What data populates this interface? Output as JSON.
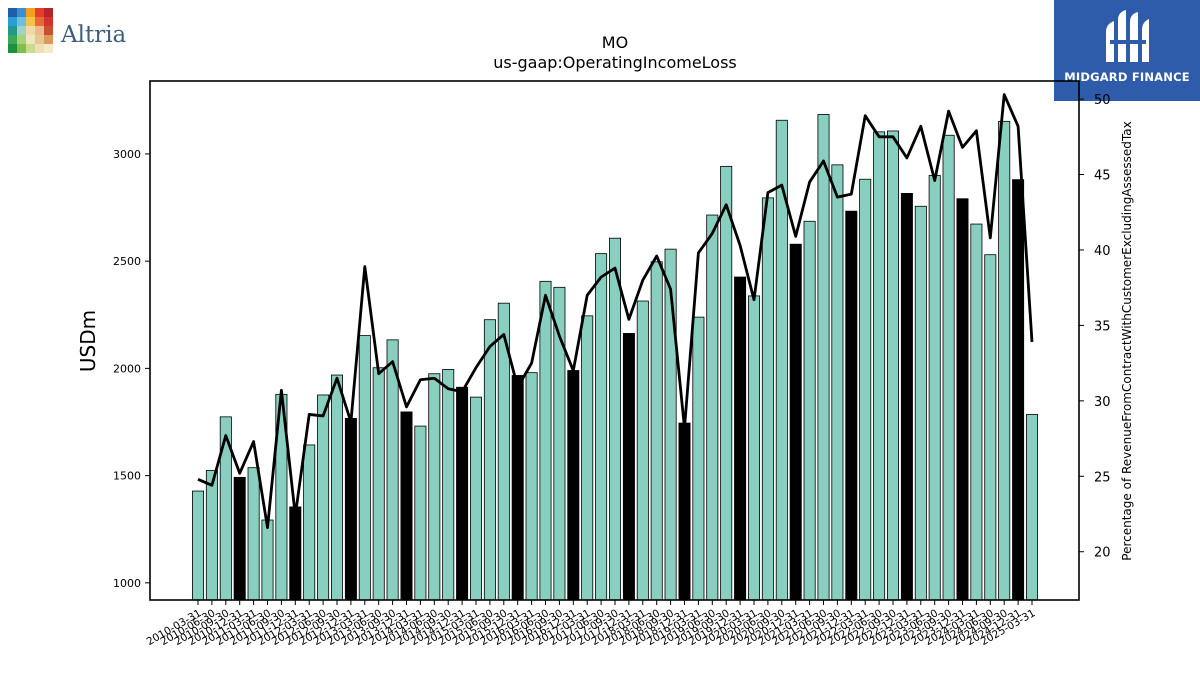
{
  "header": {
    "left_logo_text": "Altria",
    "right_logo_text": "MIDGARD FINANCE",
    "brand_color": "#2f5bab"
  },
  "chart_data": {
    "type": "bar",
    "title": "MO",
    "subtitle": "us-gaap:OperatingIncomeLoss",
    "ylabel": "USDm",
    "y2label": "Percentage of RevenueFromContractWithCustomerExcludingAssessedTax",
    "ylim": [
      920,
      3340
    ],
    "y2lim": [
      16.8,
      51.2
    ],
    "yticks": [
      1000,
      1500,
      2000,
      2500,
      3000
    ],
    "y2ticks": [
      20,
      25,
      30,
      35,
      40,
      45,
      50
    ],
    "bar_color": "#88cfc0",
    "highlight_color": "#000000",
    "line_color": "#000000",
    "grid": false,
    "categories": [
      "2010-03-31",
      "2010-06-30",
      "2010-09-30",
      "2010-12-31",
      "2011-03-31",
      "2011-06-30",
      "2011-09-30",
      "2011-12-31",
      "2012-03-31",
      "2012-06-30",
      "2012-09-30",
      "2012-12-31",
      "2013-03-31",
      "2013-06-30",
      "2013-09-30",
      "2013-12-31",
      "2014-03-31",
      "2014-06-30",
      "2014-09-30",
      "2014-12-31",
      "2015-03-31",
      "2015-06-30",
      "2015-09-30",
      "2015-12-31",
      "2016-03-31",
      "2016-06-30",
      "2016-09-30",
      "2016-12-31",
      "2017-03-31",
      "2017-06-30",
      "2017-09-30",
      "2017-12-31",
      "2018-03-31",
      "2018-06-30",
      "2018-09-30",
      "2018-12-31",
      "2019-03-31",
      "2019-06-30",
      "2019-09-30",
      "2019-12-31",
      "2020-03-31",
      "2020-06-30",
      "2020-09-30",
      "2020-12-31",
      "2021-03-31",
      "2021-06-30",
      "2021-09-30",
      "2021-12-31",
      "2022-03-31",
      "2022-06-30",
      "2022-09-30",
      "2022-12-31",
      "2023-03-31",
      "2023-06-30",
      "2023-09-30",
      "2023-12-31",
      "2024-03-31",
      "2024-06-30",
      "2024-09-30",
      "2024-12-31",
      "2025-03-31"
    ],
    "xtick_labels": [
      "2010-03-31",
      "2010-06-30",
      "2010-09-30",
      "2010-12-31",
      "2011-03-31",
      "2011-06-30",
      "2011-09-30",
      "2011-12-31",
      "2012-03-31",
      "2012-06-30",
      "2012-09-30",
      "2012-12-31",
      "2013-03-31",
      "2013-06-30",
      "2013-09-30",
      "2013-12-31",
      "2014-03-31",
      "2014-06-30",
      "2014-09-30",
      "2014-12-31",
      "2015-03-31",
      "2015-06-30",
      "2015-09-30",
      "2015-12-31",
      "2016-03-31",
      "2016-06-30",
      "2016-09-30",
      "2016-12-31",
      "2017-03-31",
      "2017-06-30",
      "2017-09-30",
      "2017-12-31",
      "2018-03-31",
      "2018-06-30",
      "2018-09-30",
      "2018-12-31",
      "2019-03-31",
      "2019-06-30",
      "2019-09-30",
      "2019-12-31",
      "2020-03-31",
      "2020-06-30",
      "2020-09-30",
      "2020-12-31",
      "2021-03-31",
      "2021-06-30",
      "2021-09-30",
      "2021-12-31",
      "2022-03-31",
      "2022-06-30",
      "2022-09-30",
      "2022-12-31",
      "2023-03-31",
      "2023-06-30",
      "2023-09-30",
      "2023-12-31",
      "2024-03-31",
      "2024-06-30",
      "2024-09-30",
      "2024-12-31",
      "2025-03-31"
    ],
    "values": [
      1428,
      1524,
      1774,
      1492,
      1537,
      1293,
      1879,
      1354,
      1643,
      1876,
      1969,
      1767,
      2153,
      2003,
      2133,
      1797,
      1731,
      1975,
      1995,
      1912,
      1866,
      2227,
      2304,
      1967,
      1980,
      2406,
      2378,
      1990,
      2245,
      2535,
      2607,
      2163,
      2314,
      2497,
      2556,
      1745,
      2239,
      2715,
      2942,
      2426,
      2338,
      2795,
      3157,
      2579,
      2686,
      3184,
      2949,
      2733,
      2882,
      3103,
      3107,
      2816,
      2756,
      2900,
      3087,
      2791,
      2673,
      2530,
      3152,
      2880,
      1785
    ],
    "highlighted": [
      false,
      false,
      false,
      true,
      false,
      false,
      false,
      true,
      false,
      false,
      false,
      true,
      false,
      false,
      false,
      true,
      false,
      false,
      false,
      true,
      false,
      false,
      false,
      true,
      false,
      false,
      false,
      true,
      false,
      false,
      false,
      true,
      false,
      false,
      false,
      true,
      false,
      false,
      false,
      true,
      false,
      false,
      false,
      true,
      false,
      false,
      false,
      true,
      false,
      false,
      false,
      true,
      false,
      false,
      false,
      true,
      false,
      false,
      false,
      true,
      false
    ],
    "line_values": [
      24.8,
      24.4,
      27.7,
      25.2,
      27.3,
      21.6,
      30.7,
      22.4,
      29.1,
      29.0,
      31.5,
      28.6,
      38.9,
      31.8,
      32.6,
      29.6,
      31.4,
      31.5,
      30.8,
      30.6,
      32.2,
      33.6,
      34.4,
      30.9,
      32.5,
      37.0,
      34.3,
      32.0,
      37.0,
      38.2,
      38.8,
      35.4,
      38.0,
      39.6,
      37.4,
      28.2,
      39.8,
      41.1,
      43.0,
      40.3,
      36.7,
      43.8,
      44.3,
      40.9,
      44.5,
      45.9,
      43.5,
      43.7,
      48.9,
      47.5,
      47.5,
      46.1,
      48.2,
      44.6,
      49.2,
      46.8,
      47.9,
      40.8,
      50.3,
      48.2,
      33.9
    ]
  }
}
